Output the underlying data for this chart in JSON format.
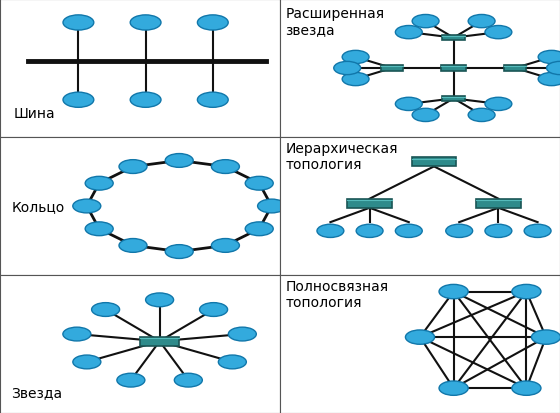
{
  "bg_color": "#ffffff",
  "border_color": "#555555",
  "line_color": "#111111",
  "node_color": "#33aadd",
  "node_edge_color": "#1177aa",
  "switch_color": "#2e8b8b",
  "switch_edge_color": "#1a5555",
  "labels": {
    "bus": "Шина",
    "ring": "Кольцо",
    "star": "Звезда",
    "ext_star": "Расширенная\nзвезда",
    "hier": "Иерархическая\nтопология",
    "mesh": "Полносвязная\nтопология"
  },
  "label_fontsize": 10
}
